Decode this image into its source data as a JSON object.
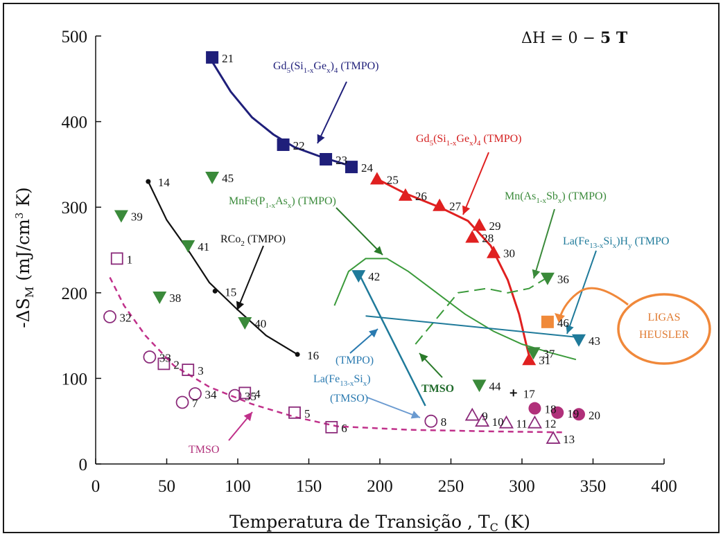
{
  "chart_data": {
    "type": "scatter",
    "xlabel": "Temperatura de Transição , T",
    "xlabel_sub": "C",
    "xlabel_unit": " (K)",
    "ylabel": "-ΔS",
    "ylabel_sub": "M",
    "ylabel_unit": " (mJ/cm",
    "ylabel_sup": "3",
    "ylabel_end": " K)",
    "xlim": [
      0,
      400
    ],
    "ylim": [
      0,
      500
    ],
    "xticks": [
      0,
      50,
      100,
      150,
      200,
      250,
      300,
      350,
      400
    ],
    "yticks": [
      0,
      100,
      200,
      300,
      400,
      500
    ],
    "field_label": "ΔH = 0 − ",
    "field_bold": "5 T",
    "series": [
      {
        "name": "Gd5(Si1-xGex)4 (TMPO)",
        "color": "#1f1f7a",
        "marker": "filled-square",
        "points": [
          {
            "x": 82,
            "y": 475,
            "label": "21"
          },
          {
            "x": 132,
            "y": 373,
            "label": "22"
          },
          {
            "x": 162,
            "y": 356,
            "label": "23"
          },
          {
            "x": 180,
            "y": 347,
            "label": "24"
          }
        ]
      },
      {
        "name": "Gd5(Si1-xGex)4 (TMPO)",
        "color": "#e02020",
        "marker": "filled-triangle-up",
        "points": [
          {
            "x": 198,
            "y": 333,
            "label": "25"
          },
          {
            "x": 218,
            "y": 314,
            "label": "26"
          },
          {
            "x": 242,
            "y": 302,
            "label": "27"
          },
          {
            "x": 265,
            "y": 265,
            "label": "28"
          },
          {
            "x": 270,
            "y": 279,
            "label": "29"
          },
          {
            "x": 280,
            "y": 247,
            "label": "30"
          },
          {
            "x": 305,
            "y": 122,
            "label": "31"
          }
        ]
      },
      {
        "name": "RCo2 (TMPO)",
        "color": "#111111",
        "marker": "dot",
        "points": [
          {
            "x": 37,
            "y": 330,
            "label": "14"
          },
          {
            "x": 84,
            "y": 202,
            "label": "15"
          },
          {
            "x": 142,
            "y": 128,
            "label": "16"
          }
        ]
      },
      {
        "name": "MnFe(P1-xAsx) (TMPO)",
        "color": "#3a8a3a",
        "marker": "filled-triangle-down",
        "points": [
          {
            "x": 18,
            "y": 290,
            "label": "39"
          },
          {
            "x": 45,
            "y": 195,
            "label": "38"
          },
          {
            "x": 65,
            "y": 255,
            "label": "41"
          },
          {
            "x": 82,
            "y": 335,
            "label": "45"
          },
          {
            "x": 105,
            "y": 165,
            "label": "40"
          },
          {
            "x": 270,
            "y": 92,
            "label": "44"
          },
          {
            "x": 308,
            "y": 130,
            "label": "37"
          },
          {
            "x": 318,
            "y": 217,
            "label": "36"
          }
        ]
      },
      {
        "name": "La(Fe13-xSix)Hy (TMPO)",
        "color": "#1f7a9a",
        "marker": "filled-triangle-down",
        "points": [
          {
            "x": 185,
            "y": 220,
            "label": "42"
          },
          {
            "x": 340,
            "y": 145,
            "label": "43"
          }
        ]
      },
      {
        "name": "Ligas Heusler",
        "color": "#f08a3a",
        "marker": "filled-square",
        "points": [
          {
            "x": 318,
            "y": 166,
            "label": "46"
          }
        ]
      },
      {
        "name": "TMSO",
        "color": "#8b2a7a",
        "marker": "open-square",
        "points": [
          {
            "x": 15,
            "y": 240,
            "label": "1"
          },
          {
            "x": 48,
            "y": 117,
            "label": "2"
          },
          {
            "x": 65,
            "y": 110,
            "label": "3"
          },
          {
            "x": 105,
            "y": 83,
            "label": "4"
          },
          {
            "x": 140,
            "y": 60,
            "label": "5"
          },
          {
            "x": 166,
            "y": 43,
            "label": "6"
          }
        ]
      },
      {
        "name": "TMSO",
        "color": "#8b2a7a",
        "marker": "open-circle",
        "points": [
          {
            "x": 10,
            "y": 172,
            "label": "32"
          },
          {
            "x": 38,
            "y": 125,
            "label": "33"
          },
          {
            "x": 61,
            "y": 72,
            "label": "7"
          },
          {
            "x": 70,
            "y": 82,
            "label": "34"
          },
          {
            "x": 98,
            "y": 80,
            "label": "35"
          },
          {
            "x": 236,
            "y": 50,
            "label": "8"
          }
        ]
      },
      {
        "name": "TMSO",
        "color": "#8b2a7a",
        "marker": "open-triangle-up",
        "points": [
          {
            "x": 265,
            "y": 57,
            "label": "9"
          },
          {
            "x": 272,
            "y": 50,
            "label": "10"
          },
          {
            "x": 289,
            "y": 48,
            "label": "11"
          },
          {
            "x": 309,
            "y": 48,
            "label": "12"
          },
          {
            "x": 322,
            "y": 30,
            "label": "13"
          }
        ]
      },
      {
        "name": "TMSO",
        "color": "#b0307a",
        "marker": "filled-circle",
        "points": [
          {
            "x": 309,
            "y": 65,
            "label": "18"
          },
          {
            "x": 325,
            "y": 60,
            "label": "19"
          },
          {
            "x": 340,
            "y": 58,
            "label": "20"
          }
        ]
      },
      {
        "name": "",
        "color": "#111111",
        "marker": "plus",
        "points": [
          {
            "x": 294,
            "y": 83,
            "label": "17"
          }
        ]
      }
    ],
    "annotations": {
      "gd_blue": {
        "main": "Gd",
        "s1": "5",
        "m2": "(Si",
        "s2": "1-x",
        "m3": "Ge",
        "s3": "x",
        "m4": ")",
        "s4": "4",
        "m5": " (TMPO)"
      },
      "gd_red": {
        "main": "Gd",
        "s1": "5",
        "m2": "(Si",
        "s2": "1-x",
        "m3": "Ge",
        "s3": "x",
        "m4": ")",
        "s4": "4",
        "m5": " (TMPO)"
      },
      "mnfe": {
        "m1": "MnFe(P",
        "s1": "1-x",
        "m2": "As",
        "s2": "x",
        "m3": ") (TMPO)"
      },
      "mnas": {
        "m1": "Mn(As",
        "s1": "1-x",
        "m2": "Sb",
        "s2": "x",
        "m3": ") (TMPO)"
      },
      "rco2": {
        "m1": "RCo",
        "s1": "2",
        "m2": " (TMPO)"
      },
      "lafeh": {
        "m1": "La(Fe",
        "s1": "13-x",
        "m2": "Si",
        "s2": "x",
        "m3": ")H",
        "s3": "y",
        "m4": " (TMPO"
      },
      "lafe_tmpo": "(TMPO)",
      "lafe": {
        "m1": "La(Fe",
        "s1": "13-x",
        "m2": "Si",
        "s2": "x",
        "m3": ")"
      },
      "lafe_tmso": "(TMSO)",
      "tmso_green": "TMSO",
      "tmso_pink": "TMSO",
      "heusler_1": "LIGAS",
      "heusler_2": "HEUSLER"
    }
  }
}
